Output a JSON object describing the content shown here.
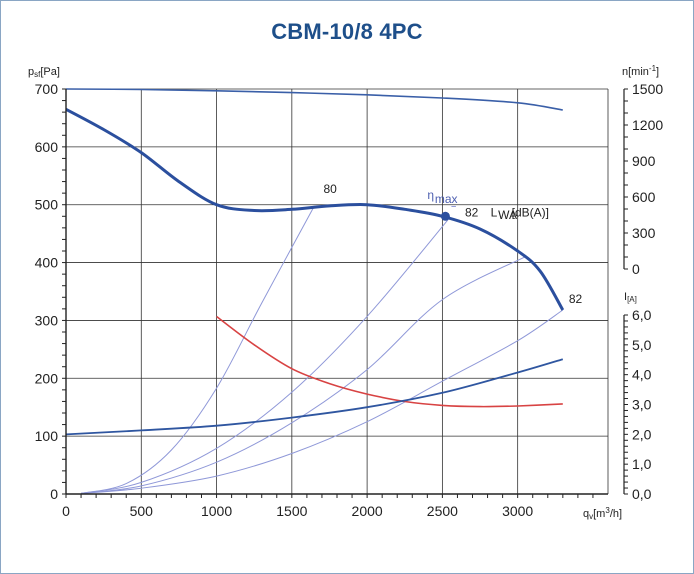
{
  "chart_data": {
    "type": "line",
    "title": "CBM-10/8 4PC",
    "xlabel": "q",
    "xlabel_sub": "v",
    "xlabel_unit": "[m",
    "xlabel_unit_sup": "3",
    "xlabel_unit_end": "/h]",
    "ylabel": "p",
    "ylabel_sub": "sf",
    "ylabel_unit": "[Pa]",
    "y2label": "n[min",
    "y2label_sup": "-1",
    "y2label_end": "]",
    "y3label": "I",
    "y3label_unit": "[A]",
    "xlim": [
      0,
      3600
    ],
    "ylim": [
      0,
      700
    ],
    "xticks": [
      0,
      500,
      1000,
      1500,
      2000,
      2500,
      3000
    ],
    "yticks": [
      0,
      100,
      200,
      300,
      400,
      500,
      600,
      700
    ],
    "rpm_ticks": [
      0,
      300,
      600,
      900,
      1200,
      1500
    ],
    "current_ticks": [
      "0,0",
      "1,0",
      "2,0",
      "3,0",
      "4,0",
      "5,0",
      "6,0"
    ],
    "grid": true,
    "colors": {
      "pressure": "#2b4f9e",
      "rpm": "#3a5fa8",
      "system": "#8f98d8",
      "current": "#d84343",
      "power": "#2f56a0",
      "axis": "#222222",
      "grid": "#333333",
      "title": "#1e4f8a"
    },
    "series": [
      {
        "x": [
          0,
          250,
          500,
          750,
          1000,
          1250,
          1500,
          1750,
          2000,
          2250,
          2500,
          2750,
          3000,
          3150,
          3300
        ],
        "values": [
          665,
          630,
          590,
          540,
          500,
          490,
          492,
          498,
          500,
          492,
          480,
          458,
          420,
          385,
          318
        ]
      },
      {
        "x": [
          0,
          500,
          1000,
          1500,
          2000,
          2500,
          3000,
          3300
        ],
        "values": [
          1500,
          1496,
          1485,
          1470,
          1452,
          1425,
          1385,
          1325
        ]
      },
      {
        "x": [
          1000,
          1250,
          1500,
          1750,
          2000,
          2250,
          2500,
          2750,
          3000,
          3300
        ],
        "values": [
          5.95,
          5.0,
          4.2,
          3.7,
          3.35,
          3.1,
          2.97,
          2.93,
          2.95,
          3.02
        ]
      },
      {
        "x": [
          0,
          500,
          1000,
          1500,
          2000,
          2500,
          3000,
          3300
        ],
        "values": [
          103,
          110,
          118,
          132,
          150,
          175,
          210,
          233
        ]
      }
    ],
    "system_curves": [
      {
        "x": [
          100,
          400,
          700,
          1000,
          1300,
          1650
        ],
        "values": [
          1,
          18,
          76,
          183,
          330,
          498
        ]
      },
      {
        "x": [
          100,
          500,
          1000,
          1500,
          2000,
          2550
        ],
        "values": [
          1,
          20,
          79,
          176,
          307,
          478
        ]
      },
      {
        "x": [
          100,
          500,
          1000,
          1500,
          2000,
          2500,
          3050
        ],
        "values": [
          1,
          14,
          55,
          123,
          215,
          336,
          410
        ]
      },
      {
        "x": [
          100,
          500,
          1000,
          1500,
          2000,
          2500,
          3000,
          3300
        ],
        "values": [
          1,
          10,
          31,
          70,
          125,
          195,
          265,
          318
        ]
      }
    ],
    "eta_max_point": {
      "x": 2520,
      "y": 480
    },
    "annotations": [
      {
        "text": "80",
        "x": 1710,
        "y": 520
      },
      {
        "text": "η",
        "x": 2400,
        "y": 510
      },
      {
        "text": "max",
        "x": 2450,
        "y": 503
      },
      {
        "text": "82",
        "x": 2650,
        "y": 480
      },
      {
        "text": "L",
        "x": 2820,
        "y": 480
      },
      {
        "text": "WA",
        "x": 2870,
        "y": 475
      },
      {
        "text": "[dB(A)]",
        "x": 2960,
        "y": 480
      },
      {
        "text": "82",
        "x": 3340,
        "y": 330
      }
    ]
  }
}
